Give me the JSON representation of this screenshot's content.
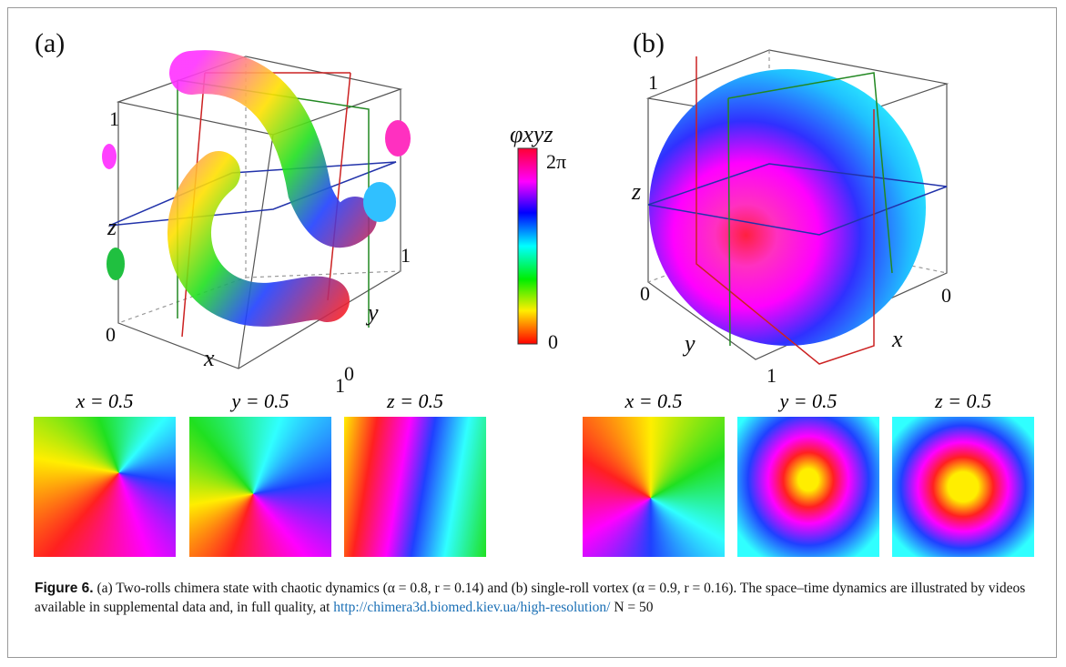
{
  "panels": [
    {
      "label": "(a)",
      "ticks": [
        "1",
        "0",
        "1",
        "0",
        "1"
      ],
      "axes": {
        "x": "x",
        "y": "y",
        "z": "z"
      },
      "slices": [
        "x = 0.5",
        "y = 0.5",
        "z = 0.5"
      ]
    },
    {
      "label": "(b)",
      "ticks": [
        "1",
        "0",
        "0",
        "1"
      ],
      "axes": {
        "x": "x",
        "y": "y",
        "z": "z"
      },
      "slices": [
        "x = 0.5",
        "y = 0.5",
        "z = 0.5"
      ]
    }
  ],
  "colorbar": {
    "label": "φxyz",
    "max": "2π",
    "min": "0"
  },
  "caption": {
    "label": "Figure 6.",
    "text": "(a) Two-rolls chimera state with chaotic dynamics (α = 0.8, r = 0.14) and (b) single-roll vortex (α = 0.9, r = 0.16). The space–time dynamics are illustrated by videos available in supplemental data and, in full quality, at",
    "link": "http://chimera3d.biomed.kiev.ua/high-resolution/",
    "tail": "N = 50"
  }
}
